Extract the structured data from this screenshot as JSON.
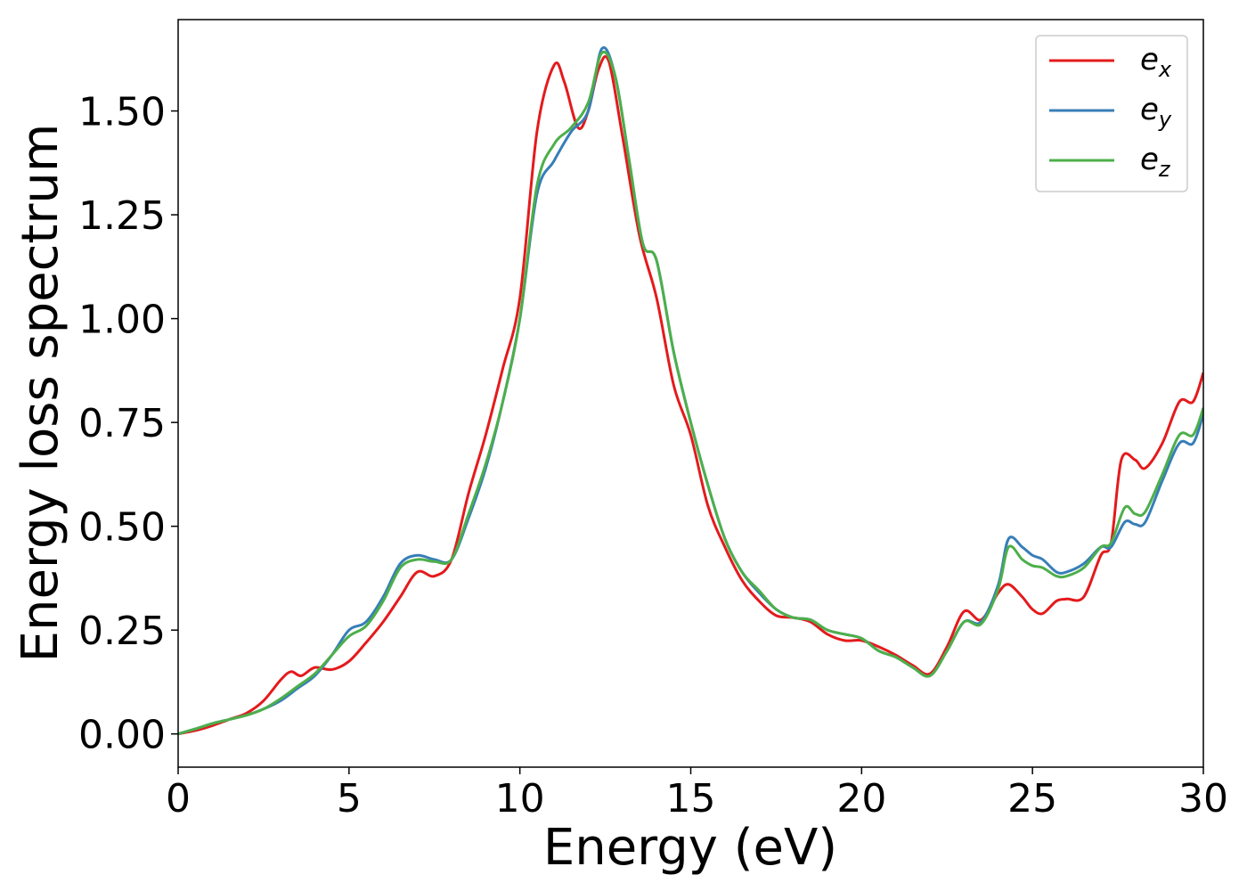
{
  "chart_data": {
    "type": "line",
    "title": "",
    "xlabel": "Energy (eV)",
    "ylabel": "Energy loss spectrum",
    "xlim": [
      0,
      30
    ],
    "ylim": [
      -0.08,
      1.72
    ],
    "xticks": [
      0,
      5,
      10,
      15,
      20,
      25,
      30
    ],
    "xtick_labels": [
      "0",
      "5",
      "10",
      "15",
      "20",
      "25",
      "30"
    ],
    "yticks": [
      0,
      0.25,
      0.5,
      0.75,
      1.0,
      1.25,
      1.5
    ],
    "ytick_labels": [
      "0.00",
      "0.25",
      "0.50",
      "0.75",
      "1.00",
      "1.25",
      "1.50"
    ],
    "grid": false,
    "legend_position": "top-right",
    "series": [
      {
        "name": "e_x",
        "label_main": "e",
        "label_sub": "x",
        "color": "#e41a1c",
        "points": [
          [
            0,
            0
          ],
          [
            0.5,
            0.008
          ],
          [
            1,
            0.02
          ],
          [
            1.5,
            0.035
          ],
          [
            2,
            0.05
          ],
          [
            2.5,
            0.08
          ],
          [
            3,
            0.13
          ],
          [
            3.3,
            0.15
          ],
          [
            3.6,
            0.14
          ],
          [
            4,
            0.16
          ],
          [
            4.5,
            0.155
          ],
          [
            5,
            0.175
          ],
          [
            5.5,
            0.22
          ],
          [
            6,
            0.27
          ],
          [
            6.5,
            0.33
          ],
          [
            7,
            0.39
          ],
          [
            7.5,
            0.38
          ],
          [
            8,
            0.42
          ],
          [
            8.5,
            0.58
          ],
          [
            9,
            0.72
          ],
          [
            9.5,
            0.88
          ],
          [
            10,
            1.05
          ],
          [
            10.5,
            1.45
          ],
          [
            11,
            1.61
          ],
          [
            11.3,
            1.57
          ],
          [
            11.7,
            1.46
          ],
          [
            12,
            1.5
          ],
          [
            12.3,
            1.6
          ],
          [
            12.6,
            1.62
          ],
          [
            13,
            1.44
          ],
          [
            13.5,
            1.2
          ],
          [
            14,
            1.05
          ],
          [
            14.5,
            0.84
          ],
          [
            15,
            0.72
          ],
          [
            15.5,
            0.55
          ],
          [
            16,
            0.45
          ],
          [
            16.5,
            0.37
          ],
          [
            17,
            0.32
          ],
          [
            17.5,
            0.285
          ],
          [
            18,
            0.28
          ],
          [
            18.5,
            0.27
          ],
          [
            19,
            0.24
          ],
          [
            19.5,
            0.225
          ],
          [
            20,
            0.225
          ],
          [
            20.5,
            0.21
          ],
          [
            21,
            0.19
          ],
          [
            21.5,
            0.165
          ],
          [
            22,
            0.145
          ],
          [
            22.5,
            0.21
          ],
          [
            23,
            0.295
          ],
          [
            23.5,
            0.275
          ],
          [
            24,
            0.34
          ],
          [
            24.3,
            0.36
          ],
          [
            24.7,
            0.33
          ],
          [
            25,
            0.3
          ],
          [
            25.3,
            0.29
          ],
          [
            25.7,
            0.32
          ],
          [
            26,
            0.325
          ],
          [
            26.5,
            0.33
          ],
          [
            27,
            0.43
          ],
          [
            27.3,
            0.46
          ],
          [
            27.6,
            0.66
          ],
          [
            28,
            0.66
          ],
          [
            28.3,
            0.64
          ],
          [
            28.8,
            0.7
          ],
          [
            29.3,
            0.8
          ],
          [
            29.7,
            0.8
          ],
          [
            30,
            0.87
          ]
        ]
      },
      {
        "name": "e_y",
        "label_main": "e",
        "label_sub": "y",
        "color": "#377eb8",
        "points": [
          [
            0,
            0
          ],
          [
            0.5,
            0.012
          ],
          [
            1,
            0.025
          ],
          [
            1.5,
            0.035
          ],
          [
            2,
            0.045
          ],
          [
            2.5,
            0.06
          ],
          [
            3,
            0.08
          ],
          [
            3.5,
            0.11
          ],
          [
            4,
            0.14
          ],
          [
            4.5,
            0.19
          ],
          [
            5,
            0.25
          ],
          [
            5.5,
            0.27
          ],
          [
            6,
            0.33
          ],
          [
            6.5,
            0.41
          ],
          [
            7,
            0.43
          ],
          [
            7.5,
            0.42
          ],
          [
            8,
            0.42
          ],
          [
            8.5,
            0.52
          ],
          [
            9,
            0.64
          ],
          [
            9.5,
            0.8
          ],
          [
            10,
            1.0
          ],
          [
            10.5,
            1.3
          ],
          [
            11,
            1.38
          ],
          [
            11.5,
            1.45
          ],
          [
            12,
            1.5
          ],
          [
            12.4,
            1.65
          ],
          [
            12.8,
            1.58
          ],
          [
            13.2,
            1.38
          ],
          [
            13.6,
            1.18
          ],
          [
            14,
            1.14
          ],
          [
            14.5,
            0.92
          ],
          [
            15,
            0.75
          ],
          [
            15.5,
            0.6
          ],
          [
            16,
            0.47
          ],
          [
            16.5,
            0.39
          ],
          [
            17,
            0.34
          ],
          [
            17.5,
            0.3
          ],
          [
            18,
            0.28
          ],
          [
            18.5,
            0.275
          ],
          [
            19,
            0.25
          ],
          [
            19.5,
            0.24
          ],
          [
            20,
            0.23
          ],
          [
            20.5,
            0.2
          ],
          [
            21,
            0.185
          ],
          [
            21.5,
            0.16
          ],
          [
            22,
            0.14
          ],
          [
            22.5,
            0.2
          ],
          [
            23,
            0.27
          ],
          [
            23.5,
            0.27
          ],
          [
            24,
            0.36
          ],
          [
            24.3,
            0.47
          ],
          [
            24.7,
            0.45
          ],
          [
            25,
            0.43
          ],
          [
            25.3,
            0.42
          ],
          [
            25.7,
            0.39
          ],
          [
            26,
            0.39
          ],
          [
            26.5,
            0.41
          ],
          [
            27,
            0.45
          ],
          [
            27.3,
            0.45
          ],
          [
            27.7,
            0.51
          ],
          [
            28,
            0.505
          ],
          [
            28.3,
            0.51
          ],
          [
            28.8,
            0.61
          ],
          [
            29.3,
            0.7
          ],
          [
            29.7,
            0.7
          ],
          [
            30,
            0.77
          ]
        ]
      },
      {
        "name": "e_z",
        "label_main": "e",
        "label_sub": "z",
        "color": "#4daf4a",
        "points": [
          [
            0,
            0
          ],
          [
            0.5,
            0.012
          ],
          [
            1,
            0.025
          ],
          [
            1.5,
            0.035
          ],
          [
            2,
            0.045
          ],
          [
            2.5,
            0.06
          ],
          [
            3,
            0.085
          ],
          [
            3.5,
            0.115
          ],
          [
            4,
            0.145
          ],
          [
            4.5,
            0.19
          ],
          [
            5,
            0.235
          ],
          [
            5.5,
            0.26
          ],
          [
            6,
            0.32
          ],
          [
            6.5,
            0.4
          ],
          [
            7,
            0.42
          ],
          [
            7.5,
            0.415
          ],
          [
            8,
            0.42
          ],
          [
            8.5,
            0.53
          ],
          [
            9,
            0.65
          ],
          [
            9.5,
            0.8
          ],
          [
            10,
            1.0
          ],
          [
            10.5,
            1.32
          ],
          [
            11,
            1.42
          ],
          [
            11.5,
            1.46
          ],
          [
            12,
            1.52
          ],
          [
            12.4,
            1.64
          ],
          [
            12.8,
            1.58
          ],
          [
            13.2,
            1.38
          ],
          [
            13.6,
            1.18
          ],
          [
            14,
            1.14
          ],
          [
            14.5,
            0.92
          ],
          [
            15,
            0.75
          ],
          [
            15.5,
            0.6
          ],
          [
            16,
            0.47
          ],
          [
            16.5,
            0.39
          ],
          [
            17,
            0.345
          ],
          [
            17.5,
            0.3
          ],
          [
            18,
            0.28
          ],
          [
            18.5,
            0.275
          ],
          [
            19,
            0.25
          ],
          [
            19.5,
            0.24
          ],
          [
            20,
            0.23
          ],
          [
            20.5,
            0.2
          ],
          [
            21,
            0.185
          ],
          [
            21.5,
            0.16
          ],
          [
            22,
            0.14
          ],
          [
            22.5,
            0.2
          ],
          [
            23,
            0.27
          ],
          [
            23.5,
            0.265
          ],
          [
            24,
            0.35
          ],
          [
            24.3,
            0.45
          ],
          [
            24.7,
            0.42
          ],
          [
            25,
            0.405
          ],
          [
            25.3,
            0.4
          ],
          [
            25.7,
            0.38
          ],
          [
            26,
            0.38
          ],
          [
            26.5,
            0.4
          ],
          [
            27,
            0.45
          ],
          [
            27.3,
            0.46
          ],
          [
            27.7,
            0.545
          ],
          [
            28,
            0.53
          ],
          [
            28.3,
            0.535
          ],
          [
            28.8,
            0.625
          ],
          [
            29.3,
            0.72
          ],
          [
            29.7,
            0.72
          ],
          [
            30,
            0.785
          ]
        ]
      }
    ]
  }
}
